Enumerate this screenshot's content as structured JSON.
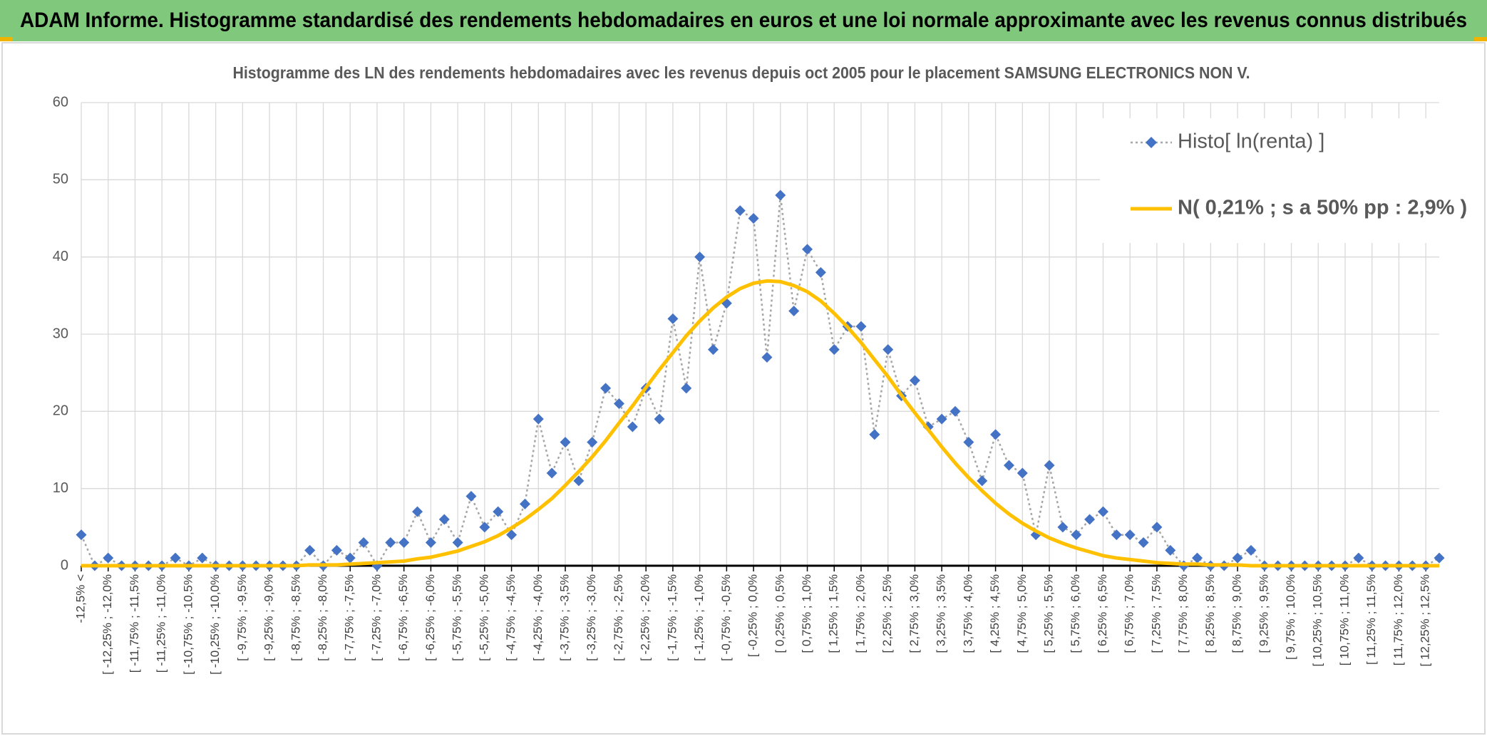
{
  "header": {
    "title": "ADAM Informe. Histogramme standardisé des rendements hebdomadaires en euros et une loi normale approximante avec les revenus connus distribués"
  },
  "chart_data": {
    "type": "line",
    "title": "Histogramme des LN des rendements hebdomadaires avec les revenus depuis oct 2005 pour le placement SAMSUNG ELECTRONICS NON V.",
    "categories": [
      "-12,5% <",
      null,
      "[ -12,25% ; -12,0%",
      null,
      "[ -11,75% ; -11,5%",
      null,
      "[ -11,25% ; -11,0%",
      null,
      "[ -10,75% ; -10,5%",
      null,
      "[ -10,25% ; -10,0%",
      null,
      "[ -9,75% ; -9,5%",
      null,
      "[ -9,25% ; -9,0%",
      null,
      "[ -8,75% ; -8,5%",
      null,
      "[ -8,25% ; -8,0%",
      null,
      "[ -7,75% ; -7,5%",
      null,
      "[ -7,25% ; -7,0%",
      null,
      "[ -6,75% ; -6,5%",
      null,
      "[ -6,25% ; -6,0%",
      null,
      "[ -5,75% ; -5,5%",
      null,
      "[ -5,25% ; -5,0%",
      null,
      "[ -4,75% ; -4,5%",
      null,
      "[ -4,25% ; -4,0%",
      null,
      "[ -3,75% ; -3,5%",
      null,
      "[ -3,25% ; -3,0%",
      null,
      "[ -2,75% ; -2,5%",
      null,
      "[ -2,25% ; -2,0%",
      null,
      "[ -1,75% ; -1,5%",
      null,
      "[ -1,25% ; -1,0%",
      null,
      "[ -0,75% ; -0,5%",
      null,
      "[ -0,25% ; 0,0%",
      null,
      "[ 0,25% ; 0,5%",
      null,
      "[ 0,75% ; 1,0%",
      null,
      "[ 1,25% ; 1,5%",
      null,
      "[ 1,75% ; 2,0%",
      null,
      "[ 2,25% ; 2,5%",
      null,
      "[ 2,75% ; 3,0%",
      null,
      "[ 3,25% ; 3,5%",
      null,
      "[ 3,75% ; 4,0%",
      null,
      "[ 4,25% ; 4,5%",
      null,
      "[ 4,75% ; 5,0%",
      null,
      "[ 5,25% ; 5,5%",
      null,
      "[ 5,75% ; 6,0%",
      null,
      "[ 6,25% ; 6,5%",
      null,
      "[ 6,75% ; 7,0%",
      null,
      "[ 7,25% ; 7,5%",
      null,
      "[ 7,75% ; 8,0%",
      null,
      "[ 8,25% ; 8,5%",
      null,
      "[ 8,75% ; 9,0%",
      null,
      "[ 9,25% ; 9,5%",
      null,
      "[ 9,75% ; 10,0%",
      null,
      "[ 10,25% ; 10,5%",
      null,
      "[ 10,75% ; 11,0%",
      null,
      "[ 11,25% ; 11,5%",
      null,
      "[ 11,75% ; 12,0%",
      null,
      "[ 12,25% ; 12,5%",
      null
    ],
    "series": [
      {
        "name": "Histo[ ln(renta) ]",
        "color": "#4472c4",
        "line_color": "#a6a6a6",
        "line_style": "dotted",
        "marker": "diamond",
        "values": [
          4,
          0,
          1,
          0,
          0,
          0,
          0,
          1,
          0,
          1,
          0,
          0,
          0,
          0,
          0,
          0,
          0,
          2,
          0,
          2,
          1,
          3,
          0,
          3,
          3,
          7,
          3,
          6,
          3,
          9,
          5,
          7,
          4,
          8,
          19,
          12,
          16,
          11,
          16,
          23,
          21,
          18,
          23,
          19,
          32,
          23,
          40,
          28,
          34,
          46,
          45,
          27,
          48,
          33,
          41,
          38,
          28,
          31,
          31,
          17,
          28,
          22,
          24,
          18,
          19,
          20,
          16,
          11,
          17,
          13,
          12,
          4,
          13,
          5,
          4,
          6,
          7,
          4,
          4,
          3,
          5,
          2,
          0,
          1,
          0,
          0,
          1,
          2,
          0,
          0,
          0,
          0,
          0,
          0,
          0,
          1,
          0,
          0,
          0,
          0,
          0,
          1
        ]
      },
      {
        "name": "N( 0,21% ; s a 50% pp : 2,9% )",
        "color": "#ffc000",
        "line_style": "solid",
        "values": [
          0,
          0,
          0,
          0,
          0,
          0,
          0,
          0,
          0,
          0,
          0,
          0,
          0,
          0,
          0,
          0,
          0,
          0.1,
          0.1,
          0.1,
          0.2,
          0.3,
          0.4,
          0.5,
          0.6,
          0.9,
          1.1,
          1.5,
          1.9,
          2.5,
          3.1,
          3.9,
          4.9,
          6.0,
          7.3,
          8.7,
          10.4,
          12.2,
          14.1,
          16.2,
          18.5,
          20.7,
          23.1,
          25.4,
          27.6,
          29.8,
          31.7,
          33.4,
          34.8,
          35.9,
          36.6,
          36.9,
          36.8,
          36.3,
          35.5,
          34.3,
          32.7,
          30.9,
          28.9,
          26.7,
          24.5,
          22.1,
          19.8,
          17.6,
          15.4,
          13.3,
          11.4,
          9.7,
          8.1,
          6.7,
          5.5,
          4.5,
          3.6,
          2.9,
          2.3,
          1.8,
          1.3,
          1.0,
          0.8,
          0.6,
          0.4,
          0.3,
          0.2,
          0.2,
          0.1,
          0.1,
          0.1,
          0,
          0,
          0,
          0,
          0,
          0,
          0,
          0,
          0,
          0,
          0,
          0,
          0,
          0,
          0
        ]
      }
    ],
    "ylim": [
      0,
      60
    ],
    "yticks": [
      0,
      10,
      20,
      30,
      40,
      50,
      60
    ],
    "grid": true,
    "legend": "upper right"
  }
}
